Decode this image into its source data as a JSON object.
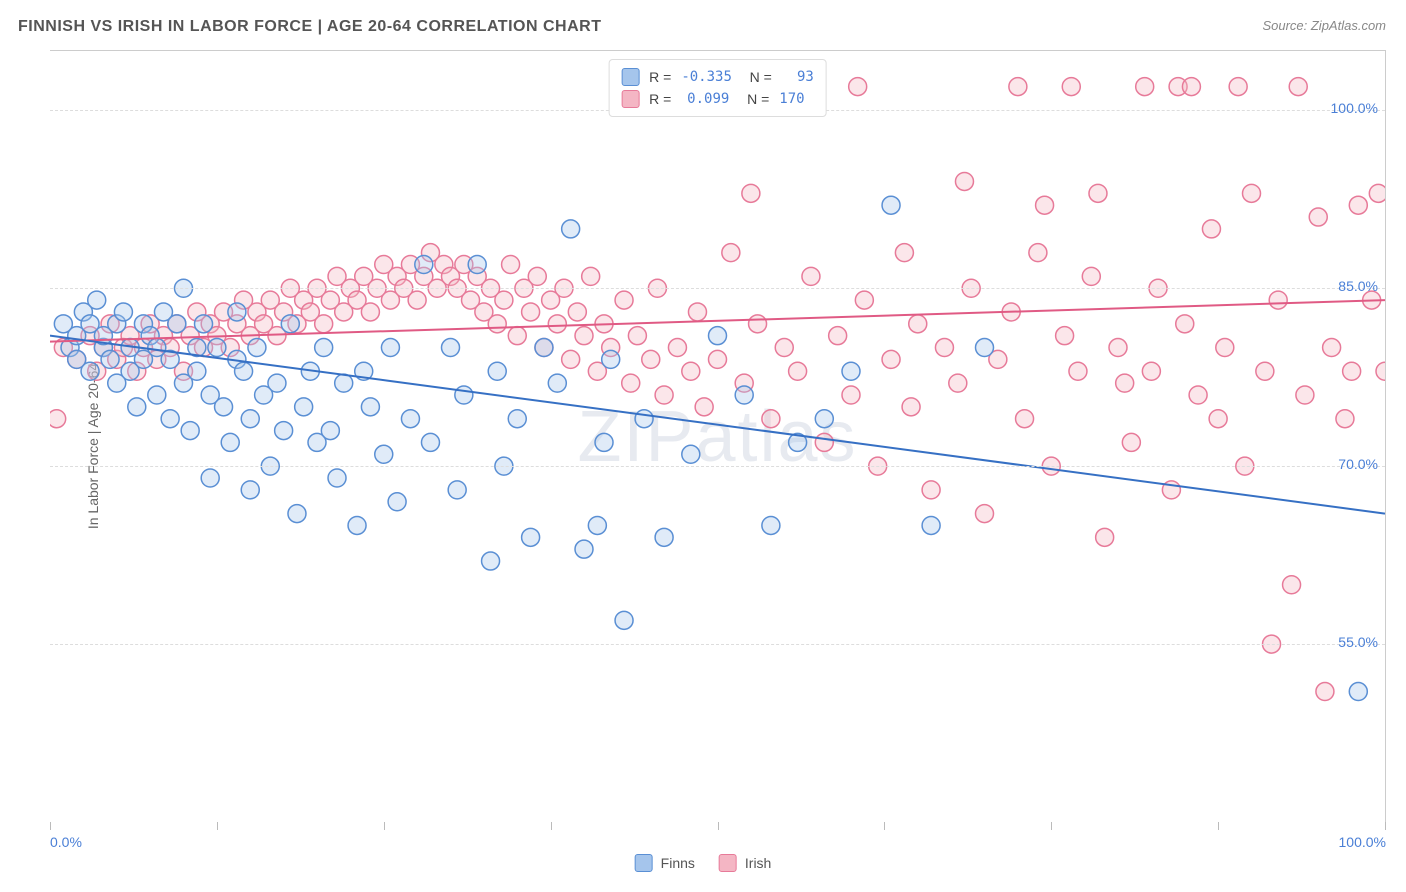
{
  "title": "FINNISH VS IRISH IN LABOR FORCE | AGE 20-64 CORRELATION CHART",
  "source": "Source: ZipAtlas.com",
  "watermark": "ZIPatlas",
  "y_axis_label": "In Labor Force | Age 20-64",
  "chart": {
    "type": "scatter",
    "xlim": [
      0,
      100
    ],
    "ylim": [
      40,
      105
    ],
    "x_ticks": [
      0,
      12.5,
      25,
      37.5,
      50,
      62.5,
      75,
      87.5,
      100
    ],
    "x_tick_labels": {
      "0": "0.0%",
      "100": "100.0%"
    },
    "y_gridlines": [
      55,
      70,
      85,
      100
    ],
    "y_tick_labels": {
      "55": "55.0%",
      "70": "70.0%",
      "85": "85.0%",
      "100": "100.0%"
    },
    "background_color": "#ffffff",
    "grid_color": "#dddddd",
    "marker_radius": 9,
    "marker_stroke_width": 1.5,
    "marker_fill_opacity": 0.35,
    "trend_line_width": 2
  },
  "series": {
    "finns": {
      "label": "Finns",
      "color_fill": "#a5c5ec",
      "color_stroke": "#5a8fd4",
      "trend_color": "#3670c4",
      "R": "-0.335",
      "N": "93",
      "trend": {
        "x1": 0,
        "y1": 81,
        "x2": 100,
        "y2": 66
      },
      "points": [
        [
          1,
          82
        ],
        [
          1.5,
          80
        ],
        [
          2,
          81
        ],
        [
          2,
          79
        ],
        [
          2.5,
          83
        ],
        [
          3,
          82
        ],
        [
          3,
          78
        ],
        [
          3.5,
          84
        ],
        [
          4,
          80
        ],
        [
          4,
          81
        ],
        [
          4.5,
          79
        ],
        [
          5,
          82
        ],
        [
          5,
          77
        ],
        [
          5.5,
          83
        ],
        [
          6,
          78
        ],
        [
          6,
          80
        ],
        [
          6.5,
          75
        ],
        [
          7,
          82
        ],
        [
          7,
          79
        ],
        [
          7.5,
          81
        ],
        [
          8,
          76
        ],
        [
          8,
          80
        ],
        [
          8.5,
          83
        ],
        [
          9,
          74
        ],
        [
          9,
          79
        ],
        [
          9.5,
          82
        ],
        [
          10,
          77
        ],
        [
          10,
          85
        ],
        [
          10.5,
          73
        ],
        [
          11,
          80
        ],
        [
          11,
          78
        ],
        [
          11.5,
          82
        ],
        [
          12,
          69
        ],
        [
          12,
          76
        ],
        [
          12.5,
          80
        ],
        [
          13,
          75
        ],
        [
          13.5,
          72
        ],
        [
          14,
          79
        ],
        [
          14,
          83
        ],
        [
          14.5,
          78
        ],
        [
          15,
          68
        ],
        [
          15,
          74
        ],
        [
          15.5,
          80
        ],
        [
          16,
          76
        ],
        [
          16.5,
          70
        ],
        [
          17,
          77
        ],
        [
          17.5,
          73
        ],
        [
          18,
          82
        ],
        [
          18.5,
          66
        ],
        [
          19,
          75
        ],
        [
          19.5,
          78
        ],
        [
          20,
          72
        ],
        [
          20.5,
          80
        ],
        [
          21,
          73
        ],
        [
          21.5,
          69
        ],
        [
          22,
          77
        ],
        [
          23,
          65
        ],
        [
          23.5,
          78
        ],
        [
          24,
          75
        ],
        [
          25,
          71
        ],
        [
          25.5,
          80
        ],
        [
          26,
          67
        ],
        [
          27,
          74
        ],
        [
          28,
          87
        ],
        [
          28.5,
          72
        ],
        [
          30,
          80
        ],
        [
          30.5,
          68
        ],
        [
          31,
          76
        ],
        [
          32,
          87
        ],
        [
          33,
          62
        ],
        [
          33.5,
          78
        ],
        [
          34,
          70
        ],
        [
          35,
          74
        ],
        [
          36,
          64
        ],
        [
          37,
          80
        ],
        [
          38,
          77
        ],
        [
          39,
          90
        ],
        [
          40,
          63
        ],
        [
          41,
          65
        ],
        [
          41.5,
          72
        ],
        [
          42,
          79
        ],
        [
          43,
          57
        ],
        [
          44.5,
          74
        ],
        [
          46,
          64
        ],
        [
          48,
          71
        ],
        [
          50,
          81
        ],
        [
          52,
          76
        ],
        [
          54,
          65
        ],
        [
          56,
          72
        ],
        [
          58,
          74
        ],
        [
          60,
          78
        ],
        [
          63,
          92
        ],
        [
          66,
          65
        ],
        [
          70,
          80
        ],
        [
          98,
          51
        ]
      ]
    },
    "irish": {
      "label": "Irish",
      "color_fill": "#f4b6c4",
      "color_stroke": "#e77a99",
      "trend_color": "#e05a84",
      "R": "0.099",
      "N": "170",
      "trend": {
        "x1": 0,
        "y1": 80.5,
        "x2": 100,
        "y2": 84
      },
      "points": [
        [
          0.5,
          74
        ],
        [
          1,
          80
        ],
        [
          2,
          79
        ],
        [
          3,
          81
        ],
        [
          3.5,
          78
        ],
        [
          4,
          80
        ],
        [
          4.5,
          82
        ],
        [
          5,
          79
        ],
        [
          5.5,
          80
        ],
        [
          6,
          81
        ],
        [
          6.5,
          78
        ],
        [
          7,
          80
        ],
        [
          7.5,
          82
        ],
        [
          8,
          79
        ],
        [
          8.5,
          81
        ],
        [
          9,
          80
        ],
        [
          9.5,
          82
        ],
        [
          10,
          78
        ],
        [
          10.5,
          81
        ],
        [
          11,
          83
        ],
        [
          11.5,
          80
        ],
        [
          12,
          82
        ],
        [
          12.5,
          81
        ],
        [
          13,
          83
        ],
        [
          13.5,
          80
        ],
        [
          14,
          82
        ],
        [
          14.5,
          84
        ],
        [
          15,
          81
        ],
        [
          15.5,
          83
        ],
        [
          16,
          82
        ],
        [
          16.5,
          84
        ],
        [
          17,
          81
        ],
        [
          17.5,
          83
        ],
        [
          18,
          85
        ],
        [
          18.5,
          82
        ],
        [
          19,
          84
        ],
        [
          19.5,
          83
        ],
        [
          20,
          85
        ],
        [
          20.5,
          82
        ],
        [
          21,
          84
        ],
        [
          21.5,
          86
        ],
        [
          22,
          83
        ],
        [
          22.5,
          85
        ],
        [
          23,
          84
        ],
        [
          23.5,
          86
        ],
        [
          24,
          83
        ],
        [
          24.5,
          85
        ],
        [
          25,
          87
        ],
        [
          25.5,
          84
        ],
        [
          26,
          86
        ],
        [
          26.5,
          85
        ],
        [
          27,
          87
        ],
        [
          27.5,
          84
        ],
        [
          28,
          86
        ],
        [
          28.5,
          88
        ],
        [
          29,
          85
        ],
        [
          29.5,
          87
        ],
        [
          30,
          86
        ],
        [
          30.5,
          85
        ],
        [
          31,
          87
        ],
        [
          31.5,
          84
        ],
        [
          32,
          86
        ],
        [
          32.5,
          83
        ],
        [
          33,
          85
        ],
        [
          33.5,
          82
        ],
        [
          34,
          84
        ],
        [
          34.5,
          87
        ],
        [
          35,
          81
        ],
        [
          35.5,
          85
        ],
        [
          36,
          83
        ],
        [
          36.5,
          86
        ],
        [
          37,
          80
        ],
        [
          37.5,
          84
        ],
        [
          38,
          82
        ],
        [
          38.5,
          85
        ],
        [
          39,
          79
        ],
        [
          39.5,
          83
        ],
        [
          40,
          81
        ],
        [
          40.5,
          86
        ],
        [
          41,
          78
        ],
        [
          41.5,
          82
        ],
        [
          42,
          80
        ],
        [
          43,
          84
        ],
        [
          43.5,
          77
        ],
        [
          44,
          81
        ],
        [
          45,
          79
        ],
        [
          45.5,
          85
        ],
        [
          46,
          76
        ],
        [
          47,
          80
        ],
        [
          48,
          78
        ],
        [
          48.5,
          83
        ],
        [
          49,
          75
        ],
        [
          50,
          79
        ],
        [
          51,
          88
        ],
        [
          52,
          77
        ],
        [
          52.5,
          93
        ],
        [
          53,
          82
        ],
        [
          54,
          74
        ],
        [
          55,
          80
        ],
        [
          56,
          78
        ],
        [
          57,
          86
        ],
        [
          58,
          72
        ],
        [
          59,
          81
        ],
        [
          60,
          76
        ],
        [
          60.5,
          102
        ],
        [
          61,
          84
        ],
        [
          62,
          70
        ],
        [
          63,
          79
        ],
        [
          64,
          88
        ],
        [
          64.5,
          75
        ],
        [
          65,
          82
        ],
        [
          66,
          68
        ],
        [
          67,
          80
        ],
        [
          68,
          77
        ],
        [
          68.5,
          94
        ],
        [
          69,
          85
        ],
        [
          70,
          66
        ],
        [
          71,
          79
        ],
        [
          72,
          83
        ],
        [
          72.5,
          102
        ],
        [
          73,
          74
        ],
        [
          74,
          88
        ],
        [
          74.5,
          92
        ],
        [
          75,
          70
        ],
        [
          76,
          81
        ],
        [
          76.5,
          102
        ],
        [
          77,
          78
        ],
        [
          78,
          86
        ],
        [
          78.5,
          93
        ],
        [
          79,
          64
        ],
        [
          80,
          80
        ],
        [
          80.5,
          77
        ],
        [
          81,
          72
        ],
        [
          82,
          102
        ],
        [
          82.5,
          78
        ],
        [
          83,
          85
        ],
        [
          84,
          68
        ],
        [
          84.5,
          102
        ],
        [
          85,
          82
        ],
        [
          85.5,
          102
        ],
        [
          86,
          76
        ],
        [
          87,
          90
        ],
        [
          87.5,
          74
        ],
        [
          88,
          80
        ],
        [
          89,
          102
        ],
        [
          89.5,
          70
        ],
        [
          90,
          93
        ],
        [
          91,
          78
        ],
        [
          91.5,
          55
        ],
        [
          92,
          84
        ],
        [
          93,
          60
        ],
        [
          93.5,
          102
        ],
        [
          94,
          76
        ],
        [
          95,
          91
        ],
        [
          95.5,
          51
        ],
        [
          96,
          80
        ],
        [
          97,
          74
        ],
        [
          97.5,
          78
        ],
        [
          98,
          92
        ],
        [
          99,
          84
        ],
        [
          99.5,
          93
        ],
        [
          100,
          78
        ]
      ]
    }
  },
  "legend_bottom": [
    {
      "key": "finns",
      "label": "Finns"
    },
    {
      "key": "irish",
      "label": "Irish"
    }
  ]
}
